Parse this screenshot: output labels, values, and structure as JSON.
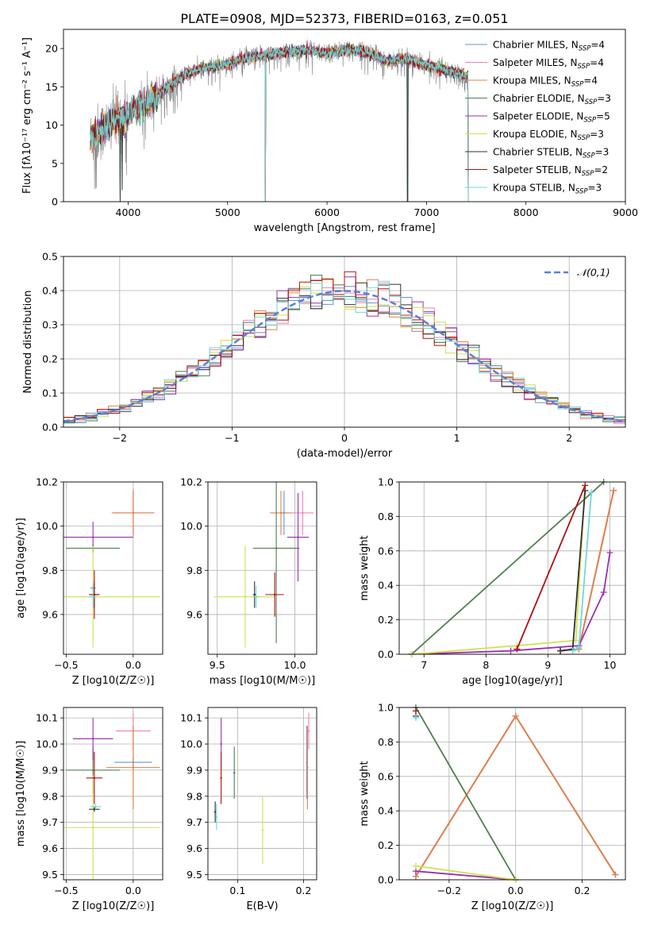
{
  "figure_title": "PLATE=0908, MJD=52373, FIBERID=0163, z=0.051",
  "models": [
    {
      "name": "Chabrier MILES",
      "nssp": "4",
      "color": "#6a8fe0"
    },
    {
      "name": "Salpeter MILES",
      "nssp": "4",
      "color": "#f080b8"
    },
    {
      "name": "Kroupa MILES",
      "nssp": "4",
      "color": "#e08040"
    },
    {
      "name": "Chabrier ELODIE",
      "nssp": "3",
      "color": "#4f7f4f"
    },
    {
      "name": "Salpeter ELODIE",
      "nssp": "5",
      "color": "#9a30b0"
    },
    {
      "name": "Kroupa ELODIE",
      "nssp": "3",
      "color": "#d0e050"
    },
    {
      "name": "Chabrier STELIB",
      "nssp": "3",
      "color": "#303030"
    },
    {
      "name": "Salpeter STELIB",
      "nssp": "2",
      "color": "#b01010"
    },
    {
      "name": "Kroupa STELIB",
      "nssp": "3",
      "color": "#70d8d8"
    }
  ],
  "data_color": "#808080",
  "chart_data": [
    {
      "id": "spectrum",
      "type": "line",
      "xlabel": "wavelength [Angstrom, rest frame]",
      "ylabel": "Flux [fλ10⁻¹⁷ erg cm⁻² s⁻¹ A⁻¹]",
      "xlim": [
        3350,
        9000
      ],
      "ylim": [
        0,
        22.5
      ],
      "xticks": [
        4000,
        5000,
        6000,
        7000,
        8000,
        9000
      ],
      "yticks": [
        0,
        5,
        10,
        15,
        20
      ],
      "data_range": [
        3620,
        7420
      ],
      "anchors_x": [
        3620,
        3700,
        3800,
        3900,
        3970,
        4050,
        4200,
        4400,
        4600,
        4800,
        5000,
        5200,
        5400,
        5600,
        5800,
        6000,
        6200,
        6400,
        6600,
        6800,
        7000,
        7200,
        7400
      ],
      "anchors_y": [
        8.2,
        9.0,
        10.0,
        10.8,
        11.0,
        12.0,
        13.0,
        15.0,
        16.8,
        17.5,
        18.0,
        18.8,
        19.2,
        19.6,
        19.8,
        19.4,
        19.8,
        19.5,
        18.4,
        18.6,
        17.8,
        17.2,
        16.4
      ],
      "dips": [
        {
          "x": 3920,
          "y": 0
        },
        {
          "x": 3940,
          "y": 1.5
        },
        {
          "x": 5380,
          "y": 0
        },
        {
          "x": 6810,
          "y": 0
        },
        {
          "x": 7420,
          "y": 0
        }
      ],
      "grid": false,
      "legend": "right"
    },
    {
      "id": "residuals",
      "type": "histogram",
      "xlabel": "(data-model)/error",
      "ylabel": "Normed distribution",
      "xlim": [
        -2.5,
        2.5
      ],
      "ylim": [
        0,
        0.5
      ],
      "xticks": [
        -2,
        -1,
        0,
        1,
        2
      ],
      "yticks": [
        0,
        0.1,
        0.2,
        0.3,
        0.4,
        0.5
      ],
      "bin_width": 0.1,
      "reference_curve": {
        "name": "𝒩(0,1)",
        "mean": 0,
        "sigma": 1
      },
      "grid": true,
      "legend": "top-right"
    },
    {
      "id": "age_vs_Z",
      "type": "scatter",
      "xlabel": "Z [log10(Z/Z☉)]",
      "ylabel": "age [log10(age/yr)]",
      "xlim": [
        -0.52,
        0.22
      ],
      "ylim": [
        9.42,
        10.2
      ],
      "xticks": [
        -0.5,
        0.0
      ],
      "yticks": [
        9.6,
        9.8,
        10.0,
        10.2
      ],
      "points": [
        {
          "model": 0,
          "x": -0.3,
          "y": 9.72,
          "xerr": 0.02,
          "yerr": 0.02
        },
        {
          "model": 1,
          "x": 0.0,
          "y": 10.06,
          "xerr": 0.16,
          "yerr": 0.11
        },
        {
          "model": 2,
          "x": 0.0,
          "y": 10.06,
          "xerr": 0.15,
          "yerr": 0.1
        },
        {
          "model": 3,
          "x": -0.3,
          "y": 9.9,
          "xerr": 0.2,
          "yerr": 0.02
        },
        {
          "model": 4,
          "x": -0.3,
          "y": 9.95,
          "xerr": 0.3,
          "yerr": 0.07
        },
        {
          "model": 5,
          "x": -0.3,
          "y": 9.68,
          "xerr": 0.5,
          "yerr": 0.23
        },
        {
          "model": 6,
          "x": -0.29,
          "y": 9.69,
          "xerr": 0.03,
          "yerr": 0.06
        },
        {
          "model": 7,
          "x": -0.29,
          "y": 9.69,
          "xerr": 0.04,
          "yerr": 0.11
        },
        {
          "model": 8,
          "x": -0.3,
          "y": 9.68,
          "xerr": 0.03,
          "yerr": 0.05
        }
      ],
      "grid": true
    },
    {
      "id": "age_vs_mass",
      "type": "scatter",
      "xlabel": "mass [log10(M/M☉)]",
      "ylabel": "",
      "xlim": [
        9.44,
        10.14
      ],
      "ylim": [
        9.42,
        10.2
      ],
      "xticks": [
        9.5,
        10.0
      ],
      "yticks": [
        9.6,
        9.8,
        10.0,
        10.2
      ],
      "points": [
        {
          "model": 0,
          "x": 9.93,
          "y": 10.06,
          "xerr": 0.02,
          "yerr": 0.1
        },
        {
          "model": 1,
          "x": 10.05,
          "y": 10.06,
          "xerr": 0.07,
          "yerr": 0.1
        },
        {
          "model": 2,
          "x": 9.91,
          "y": 10.06,
          "xerr": 0.07,
          "yerr": 0.1
        },
        {
          "model": 3,
          "x": 9.88,
          "y": 9.9,
          "xerr": 0.15,
          "yerr": 0.43
        },
        {
          "model": 4,
          "x": 10.02,
          "y": 9.95,
          "xerr": 0.07,
          "yerr": 0.2
        },
        {
          "model": 5,
          "x": 9.68,
          "y": 9.68,
          "xerr": 0.2,
          "yerr": 0.23
        },
        {
          "model": 6,
          "x": 9.74,
          "y": 9.69,
          "xerr": 0.01,
          "yerr": 0.06
        },
        {
          "model": 7,
          "x": 9.87,
          "y": 9.69,
          "xerr": 0.06,
          "yerr": 0.1
        },
        {
          "model": 8,
          "x": 9.75,
          "y": 9.68,
          "xerr": 0.02,
          "yerr": 0.05
        }
      ],
      "grid": true
    },
    {
      "id": "weight_vs_age",
      "type": "line",
      "xlabel": "age [log10(age/yr)]",
      "ylabel": "mass weight",
      "xlim": [
        6.6,
        10.25
      ],
      "ylim": [
        0,
        1.0
      ],
      "xticks": [
        7,
        8,
        9,
        10
      ],
      "yticks": [
        0,
        0.2,
        0.4,
        0.6,
        0.8,
        1.0
      ],
      "series": [
        {
          "model": 0,
          "x": [
            9.2,
            9.5,
            10.06
          ],
          "y": [
            0.02,
            0.03,
            0.95
          ]
        },
        {
          "model": 1,
          "x": [
            9.2,
            9.5,
            10.06
          ],
          "y": [
            0.02,
            0.03,
            0.95
          ]
        },
        {
          "model": 2,
          "x": [
            9.2,
            9.5,
            10.06
          ],
          "y": [
            0.02,
            0.03,
            0.95
          ]
        },
        {
          "model": 3,
          "x": [
            6.8,
            9.9
          ],
          "y": [
            0.0,
            1.0
          ]
        },
        {
          "model": 4,
          "x": [
            6.8,
            8.4,
            9.5,
            9.9,
            10.0
          ],
          "y": [
            0.0,
            0.02,
            0.05,
            0.36,
            0.59
          ]
        },
        {
          "model": 5,
          "x": [
            6.8,
            8.5,
            9.45,
            9.6
          ],
          "y": [
            0.0,
            0.05,
            0.08,
            0.98
          ]
        },
        {
          "model": 6,
          "x": [
            9.2,
            9.4,
            9.6
          ],
          "y": [
            0.02,
            0.03,
            0.95
          ]
        },
        {
          "model": 7,
          "x": [
            8.5,
            9.6
          ],
          "y": [
            0.03,
            0.98
          ]
        },
        {
          "model": 8,
          "x": [
            9.4,
            9.5,
            9.7
          ],
          "y": [
            0.02,
            0.04,
            0.94
          ]
        }
      ],
      "grid": true
    },
    {
      "id": "mass_vs_Z",
      "type": "scatter",
      "xlabel": "Z [log10(Z/Z☉)]",
      "ylabel": "mass [log10(M/M☉)]",
      "xlim": [
        -0.52,
        0.22
      ],
      "ylim": [
        9.48,
        10.14
      ],
      "xticks": [
        -0.5,
        0.0
      ],
      "yticks": [
        9.5,
        9.6,
        9.7,
        9.8,
        9.9,
        10.0,
        10.1
      ],
      "points": [
        {
          "model": 0,
          "x": 0.0,
          "y": 9.93,
          "xerr": 0.14,
          "yerr": 0.02
        },
        {
          "model": 1,
          "x": 0.0,
          "y": 10.05,
          "xerr": 0.13,
          "yerr": 0.07
        },
        {
          "model": 2,
          "x": 0.0,
          "y": 9.91,
          "xerr": 0.2,
          "yerr": 0.16
        },
        {
          "model": 3,
          "x": -0.3,
          "y": 9.9,
          "xerr": 0.2,
          "yerr": 0.09
        },
        {
          "model": 4,
          "x": -0.3,
          "y": 10.02,
          "xerr": 0.15,
          "yerr": 0.08
        },
        {
          "model": 5,
          "x": -0.3,
          "y": 9.68,
          "xerr": 0.5,
          "yerr": 0.2
        },
        {
          "model": 6,
          "x": -0.29,
          "y": 9.75,
          "xerr": 0.04,
          "yerr": 0.01
        },
        {
          "model": 7,
          "x": -0.29,
          "y": 9.87,
          "xerr": 0.06,
          "yerr": 0.1
        },
        {
          "model": 8,
          "x": -0.28,
          "y": 9.76,
          "xerr": 0.04,
          "yerr": 0.01
        }
      ],
      "grid": true
    },
    {
      "id": "mass_vs_ebv",
      "type": "scatter",
      "xlabel": "E(B-V)",
      "ylabel": "",
      "xlim": [
        0.055,
        0.22
      ],
      "ylim": [
        9.48,
        10.14
      ],
      "xticks": [
        0.1,
        0.2
      ],
      "yticks": [
        9.5,
        9.6,
        9.7,
        9.8,
        9.9,
        10.0,
        10.1
      ],
      "points": [
        {
          "model": 0,
          "x": 0.205,
          "y": 9.93,
          "xerr": 0.0,
          "yerr": 0.14
        },
        {
          "model": 1,
          "x": 0.208,
          "y": 10.05,
          "xerr": 0.0,
          "yerr": 0.07
        },
        {
          "model": 2,
          "x": 0.206,
          "y": 9.91,
          "xerr": 0.0,
          "yerr": 0.16
        },
        {
          "model": 3,
          "x": 0.095,
          "y": 9.89,
          "xerr": 0.0,
          "yerr": 0.1
        },
        {
          "model": 4,
          "x": 0.075,
          "y": 10.0,
          "xerr": 0.0,
          "yerr": 0.1
        },
        {
          "model": 5,
          "x": 0.138,
          "y": 9.67,
          "xerr": 0.0,
          "yerr": 0.13
        },
        {
          "model": 6,
          "x": 0.066,
          "y": 9.74,
          "xerr": 0.0,
          "yerr": 0.04
        },
        {
          "model": 7,
          "x": 0.075,
          "y": 9.87,
          "xerr": 0.0,
          "yerr": 0.1
        },
        {
          "model": 8,
          "x": 0.068,
          "y": 9.72,
          "xerr": 0.0,
          "yerr": 0.05
        }
      ],
      "grid": true
    },
    {
      "id": "weight_vs_Z",
      "type": "line",
      "xlabel": "Z [log10(Z/Z☉)]",
      "ylabel": "mass weight",
      "xlim": [
        -0.35,
        0.33
      ],
      "ylim": [
        0,
        1.0
      ],
      "xticks": [
        -0.2,
        0.0,
        0.2
      ],
      "yticks": [
        0,
        0.2,
        0.4,
        0.6,
        0.8,
        1.0
      ],
      "series": [
        {
          "model": 0,
          "x": [
            -0.3,
            0.0,
            0.3
          ],
          "y": [
            0.02,
            0.95,
            0.03
          ]
        },
        {
          "model": 1,
          "x": [
            -0.3,
            0.0,
            0.3
          ],
          "y": [
            0.02,
            0.95,
            0.03
          ]
        },
        {
          "model": 2,
          "x": [
            -0.3,
            0.0,
            0.3
          ],
          "y": [
            0.02,
            0.95,
            0.03
          ]
        },
        {
          "model": 3,
          "x": [
            -0.3,
            0.0
          ],
          "y": [
            1.0,
            0.0
          ]
        },
        {
          "model": 4,
          "x": [
            -0.3,
            0.0
          ],
          "y": [
            0.05,
            0.0
          ]
        },
        {
          "model": 5,
          "x": [
            -0.3,
            0.0
          ],
          "y": [
            0.08,
            0.0
          ]
        },
        {
          "model": 6,
          "x": [
            -0.3
          ],
          "y": [
            0.95
          ]
        },
        {
          "model": 7,
          "x": [
            -0.3
          ],
          "y": [
            0.98
          ]
        },
        {
          "model": 8,
          "x": [
            -0.3
          ],
          "y": [
            0.94
          ]
        }
      ],
      "grid": true
    }
  ]
}
